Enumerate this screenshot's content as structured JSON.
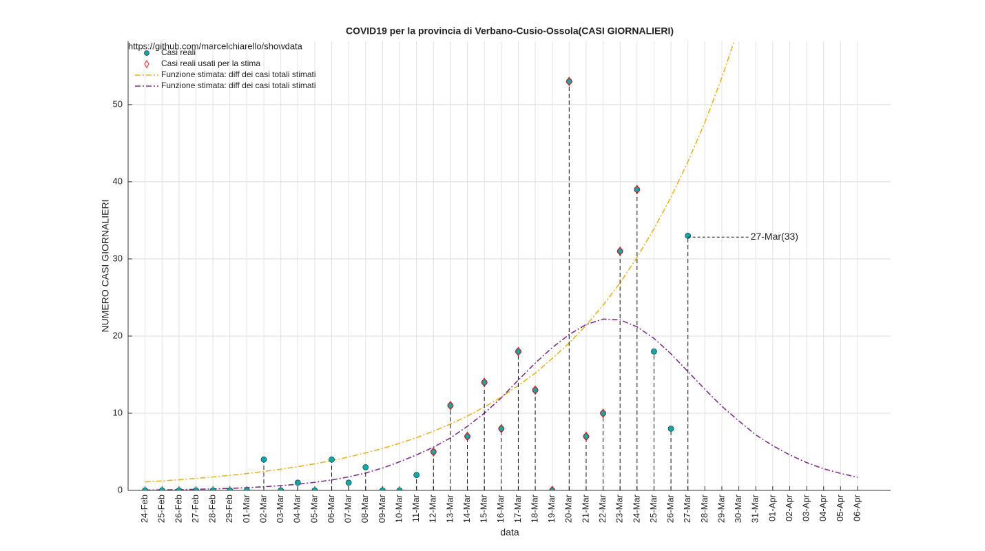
{
  "chart_data": {
    "type": "line",
    "title": "COVID19 per la provincia di Verbano-Cusio-Ossola(CASI GIORNALIERI)",
    "source": "https://github.com/marcelchiarello/showdata",
    "x_label": "data",
    "y_label": "NUMERO CASI GIORNALIERI",
    "categories": [
      "24-Feb",
      "25-Feb",
      "26-Feb",
      "27-Feb",
      "28-Feb",
      "29-Feb",
      "01-Mar",
      "02-Mar",
      "03-Mar",
      "04-Mar",
      "05-Mar",
      "06-Mar",
      "07-Mar",
      "08-Mar",
      "09-Mar",
      "10-Mar",
      "11-Mar",
      "12-Mar",
      "13-Mar",
      "14-Mar",
      "15-Mar",
      "16-Mar",
      "17-Mar",
      "18-Mar",
      "19-Mar",
      "20-Mar",
      "21-Mar",
      "22-Mar",
      "23-Mar",
      "24-Mar",
      "25-Mar",
      "26-Mar",
      "27-Mar",
      "28-Mar",
      "29-Mar",
      "30-Mar",
      "31-Mar",
      "01-Apr",
      "02-Apr",
      "03-Apr",
      "04-Apr",
      "05-Apr",
      "06-Apr"
    ],
    "series": [
      {
        "name": "Casi reali",
        "color": "#17a6a6",
        "style": "stem",
        "values": [
          0,
          0,
          0,
          0,
          0,
          0,
          0,
          4,
          0,
          1,
          0,
          4,
          1,
          3,
          0,
          0,
          2,
          5,
          11,
          7,
          14,
          8,
          18,
          13,
          0,
          53,
          7,
          10,
          31,
          39,
          18,
          8,
          33,
          null,
          null,
          null,
          null,
          null,
          null,
          null,
          null,
          null,
          null
        ]
      },
      {
        "name": "Casi reali usati per la stima",
        "color": "#e02020",
        "style": "diamond",
        "values": [
          null,
          null,
          null,
          null,
          null,
          null,
          null,
          null,
          null,
          null,
          null,
          null,
          null,
          null,
          null,
          null,
          null,
          5,
          11,
          7,
          14,
          8,
          18,
          13,
          0,
          53,
          7,
          10,
          31,
          39,
          null,
          null,
          null,
          null,
          null,
          null,
          null,
          null,
          null,
          null,
          null,
          null,
          null
        ]
      },
      {
        "name": "Funzione stimata: diff dei casi totali stimati",
        "color": "#EDB120",
        "style": "dashdot",
        "values": [
          1.1,
          1.23,
          1.38,
          1.55,
          1.74,
          1.95,
          2.18,
          2.45,
          2.74,
          3.07,
          3.45,
          3.86,
          4.33,
          4.86,
          5.44,
          6.1,
          6.84,
          7.67,
          8.6,
          9.64,
          10.8,
          12.1,
          13.6,
          15.2,
          17.1,
          19.1,
          21.4,
          24.0,
          26.9,
          30.2,
          33.9,
          38.0,
          42.6,
          47.7,
          53.5,
          60.0,
          null,
          null,
          null,
          null,
          null,
          null,
          null
        ]
      },
      {
        "name": "Funzione stimata: diff dei casi totali stimati",
        "color": "#7E2F8E",
        "style": "dashdot",
        "values": [
          0.05,
          0.07,
          0.1,
          0.14,
          0.19,
          0.26,
          0.35,
          0.47,
          0.62,
          0.8,
          1.05,
          1.35,
          1.75,
          2.25,
          2.9,
          3.7,
          4.6,
          5.6,
          6.8,
          8.3,
          10.0,
          12.0,
          14.3,
          16.5,
          18.5,
          20.2,
          21.5,
          22.2,
          22.1,
          21.2,
          19.7,
          17.7,
          15.4,
          13.1,
          10.9,
          9.0,
          7.2,
          5.8,
          4.6,
          3.6,
          2.8,
          2.2,
          1.7
        ]
      }
    ],
    "annotations": [
      {
        "text": "27-Mar(33)",
        "x": "27-Mar",
        "y": 33
      }
    ],
    "ylim": [
      0,
      58.2
    ],
    "yticks": [
      0,
      10,
      20,
      30,
      40,
      50
    ],
    "grid": true,
    "legend": "upper left"
  }
}
